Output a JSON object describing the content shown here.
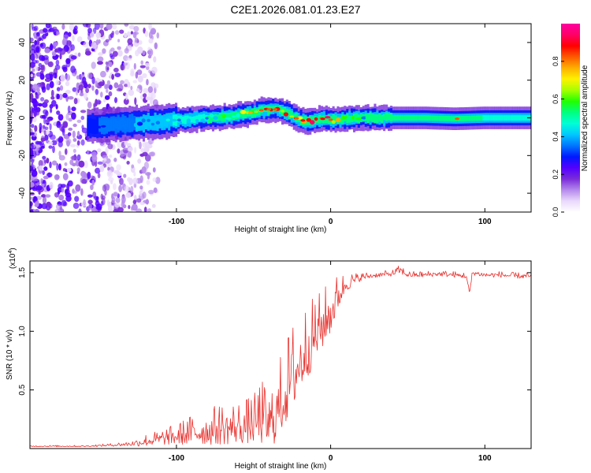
{
  "title": "C2E1.2026.081.01.23.E27",
  "chart_data": [
    {
      "type": "heatmap",
      "xlabel": "Height of straight line (km)",
      "ylabel": "Frequency (Hz)",
      "xlim": [
        -195,
        130
      ],
      "ylim": [
        -50,
        50
      ],
      "xticks": [
        -100,
        0,
        100
      ],
      "xtick_labels": [
        "-100",
        "0",
        "100"
      ],
      "yticks": [
        -40,
        -20,
        0,
        20,
        40
      ],
      "ytick_labels": [
        "-40",
        "-20",
        "0",
        "20",
        "40"
      ],
      "colorbar": {
        "label": "Normalized spectral amplitude",
        "range": [
          0,
          1
        ],
        "ticks": [
          0.0,
          0.2,
          0.4,
          0.6,
          0.8
        ],
        "tick_labels": [
          "0.0",
          "0.2",
          "0.4",
          "0.6",
          "0.8"
        ],
        "colors": [
          "#ffffff",
          "#e9d8fb",
          "#b488ec",
          "#7a2cd9",
          "#5300ff",
          "#0018ff",
          "#0077ff",
          "#00c8ff",
          "#00ffd6",
          "#00ff80",
          "#22ff00",
          "#a6ff00",
          "#fff200",
          "#ffae00",
          "#ff5a00",
          "#ff0000",
          "#ff0066",
          "#ff00a0"
        ]
      },
      "ridge": {
        "x": [
          -160,
          -150,
          -140,
          -130,
          -120,
          -110,
          -100,
          -90,
          -80,
          -70,
          -60,
          -50,
          -45,
          -40,
          -35,
          -30,
          -25,
          -20,
          -15,
          -10,
          -5,
          0,
          5,
          10,
          20,
          40,
          60,
          80,
          100,
          130
        ],
        "freq": [
          -4.5,
          -4,
          -3.5,
          -3,
          -2.5,
          -2,
          -1,
          -0.5,
          0,
          0.5,
          1.5,
          3,
          4,
          4.5,
          4.5,
          3,
          1,
          -1,
          -2,
          -1,
          -0.5,
          -1,
          -1,
          -0.5,
          0,
          0,
          0,
          -0.5,
          0,
          0
        ]
      },
      "peak_amplitude": {
        "x": [
          -160,
          -140,
          -120,
          -100,
          -80,
          -60,
          -50,
          -40,
          -30,
          -20,
          -10,
          0,
          20,
          40,
          60,
          80,
          100,
          130
        ],
        "value": [
          0.3,
          0.35,
          0.4,
          0.45,
          0.5,
          0.6,
          0.8,
          0.85,
          0.8,
          0.85,
          0.9,
          0.85,
          0.5,
          0.5,
          0.5,
          0.85,
          0.45,
          0.45
        ]
      },
      "noise_region_x": [
        -195,
        -120
      ]
    },
    {
      "type": "line",
      "xlabel": "Height of straight line (km)",
      "ylabel": "SNR (10 * v/v)",
      "y_multiplier_label": "(x10",
      "y_multiplier_exp": "4",
      "y_multiplier_close": ")",
      "xlim": [
        -195,
        130
      ],
      "ylim": [
        0,
        1.6
      ],
      "xticks": [
        -100,
        0,
        100
      ],
      "xtick_labels": [
        "-100",
        "0",
        "100"
      ],
      "yticks": [
        0.5,
        1.0,
        1.5
      ],
      "ytick_labels": [
        "0.5",
        "1.0",
        "1.5"
      ],
      "series": [
        {
          "name": "SNR",
          "color": "#e8322e",
          "x": [
            -195,
            -160,
            -140,
            -130,
            -120,
            -110,
            -100,
            -90,
            -80,
            -70,
            -60,
            -50,
            -45,
            -40,
            -35,
            -30,
            -25,
            -20,
            -15,
            -10,
            -5,
            0,
            5,
            10,
            20,
            30,
            40,
            45,
            50,
            60,
            70,
            80,
            88,
            90,
            92,
            100,
            110,
            120,
            130
          ],
          "y": [
            0.02,
            0.02,
            0.03,
            0.04,
            0.06,
            0.08,
            0.1,
            0.13,
            0.15,
            0.17,
            0.18,
            0.2,
            0.25,
            0.18,
            0.3,
            0.45,
            0.6,
            0.72,
            0.85,
            0.95,
            1.05,
            1.15,
            1.3,
            1.4,
            1.46,
            1.48,
            1.49,
            1.52,
            1.48,
            1.48,
            1.49,
            1.48,
            1.47,
            1.32,
            1.5,
            1.48,
            1.48,
            1.47,
            1.47
          ],
          "noise": [
            0.005,
            0.005,
            0.01,
            0.02,
            0.04,
            0.05,
            0.07,
            0.1,
            0.12,
            0.14,
            0.14,
            0.16,
            0.22,
            0.18,
            0.25,
            0.28,
            0.3,
            0.28,
            0.25,
            0.22,
            0.2,
            0.18,
            0.12,
            0.06,
            0.025,
            0.02,
            0.02,
            0.03,
            0.02,
            0.02,
            0.02,
            0.02,
            0.02,
            0.02,
            0.02,
            0.02,
            0.02,
            0.02,
            0.02
          ]
        }
      ]
    }
  ]
}
